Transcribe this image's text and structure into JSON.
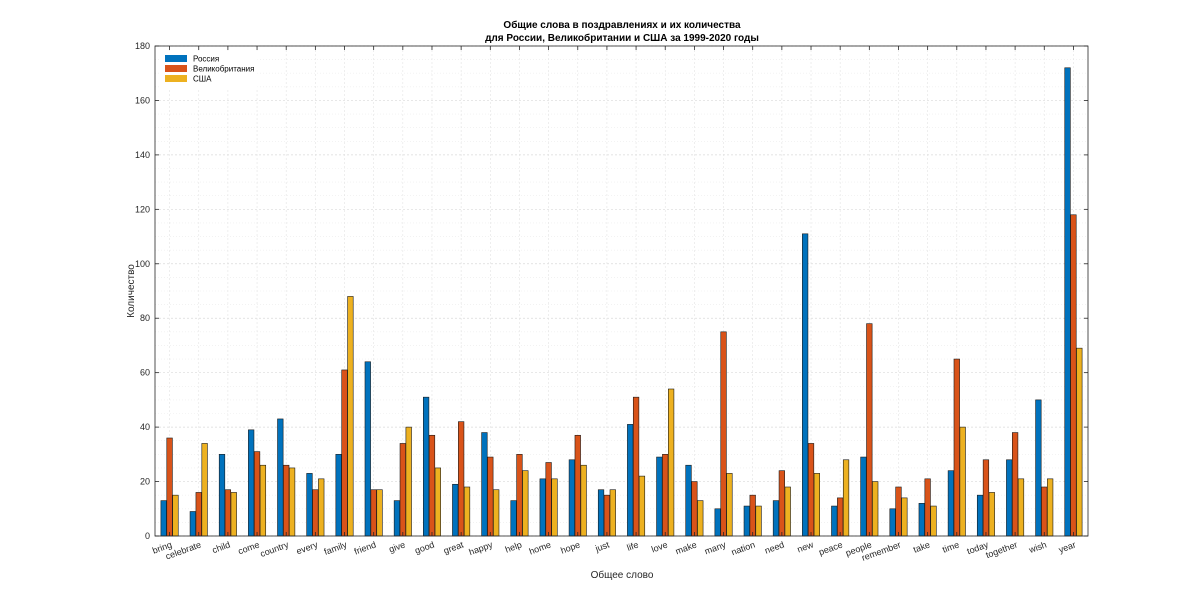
{
  "chart_data": {
    "type": "bar",
    "title": "Общие слова в поздравлениях и их количества",
    "subtitle": "для России, Великобритании и США за 1999-2020 годы",
    "xlabel": "Общее слово",
    "ylabel": "Количество",
    "ylim": [
      0,
      180
    ],
    "yticks": [
      "0",
      "20",
      "40",
      "60",
      "80",
      "100",
      "120",
      "140",
      "160",
      "180"
    ],
    "grid": true,
    "legend_position": "top-left",
    "categories": [
      "bring",
      "celebrate",
      "child",
      "come",
      "country",
      "every",
      "family",
      "friend",
      "give",
      "good",
      "great",
      "happy",
      "help",
      "home",
      "hope",
      "just",
      "life",
      "love",
      "make",
      "many",
      "nation",
      "need",
      "new",
      "peace",
      "people",
      "remember",
      "take",
      "time",
      "today",
      "together",
      "wish",
      "year"
    ],
    "series": [
      {
        "name": "Россия",
        "color": "#0072BD",
        "values": [
          13,
          9,
          30,
          39,
          43,
          23,
          30,
          64,
          13,
          51,
          19,
          38,
          13,
          21,
          28,
          17,
          41,
          29,
          26,
          10,
          11,
          13,
          111,
          11,
          29,
          10,
          12,
          24,
          15,
          28,
          50,
          172
        ]
      },
      {
        "name": "Великобритания",
        "color": "#D95319",
        "values": [
          36,
          16,
          17,
          31,
          26,
          17,
          61,
          17,
          34,
          37,
          42,
          29,
          30,
          27,
          37,
          15,
          51,
          30,
          20,
          75,
          15,
          24,
          34,
          14,
          78,
          18,
          21,
          65,
          28,
          38,
          18,
          118
        ]
      },
      {
        "name": "США",
        "color": "#EDB120",
        "values": [
          15,
          34,
          16,
          26,
          25,
          21,
          88,
          17,
          40,
          25,
          18,
          17,
          24,
          21,
          26,
          17,
          22,
          54,
          13,
          23,
          11,
          18,
          23,
          28,
          20,
          14,
          11,
          40,
          16,
          21,
          21,
          69
        ]
      }
    ]
  }
}
